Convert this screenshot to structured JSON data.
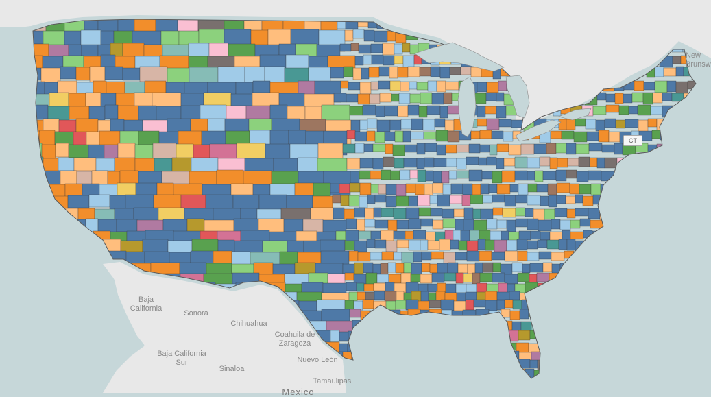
{
  "map": {
    "palette": [
      "#4e79a7",
      "#f28e2b",
      "#a0cbe8",
      "#ffbe7d",
      "#59a14f",
      "#8cd17d",
      "#e15759",
      "#f1ce63",
      "#b6992d",
      "#499894",
      "#d37295",
      "#fabfd2",
      "#9d7660",
      "#d7b5a6",
      "#86bcb6",
      "#79706e",
      "#b07aa1"
    ],
    "ocean_color": "#c6d7d9",
    "land_color": "#e8e8e8",
    "labels": {
      "baja_california": "Baja\nCalifornia",
      "sonora": "Sonora",
      "chihuahua": "Chihuahua",
      "coahuila": "Coahuila de\nZaragoza",
      "baja_california_sur": "Baja California\nSur",
      "sinaloa": "Sinaloa",
      "nuevo_leon": "Nuevo León",
      "tamaulipas": "Tamaulipas",
      "mexico": "Mexico",
      "new_brunswick": "New\nBrunsw",
      "ct": "CT"
    }
  }
}
